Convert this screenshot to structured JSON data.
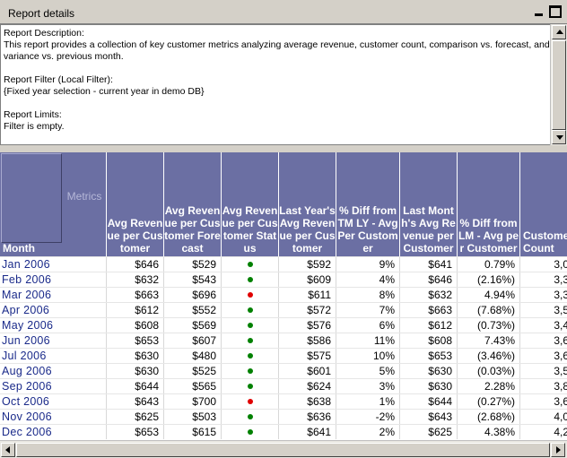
{
  "panel": {
    "title": "Report details",
    "description_label": "Report Description:",
    "description_text": "This report provides a collection of key customer metrics analyzing average revenue, customer count, comparison vs. forecast, and variance vs. previous month.",
    "filter_label": "Report Filter (Local Filter):",
    "filter_text": "{Fixed year selection - current year in demo DB}",
    "limits_label": "Report Limits:",
    "limits_text": "Filter is empty."
  },
  "grid": {
    "row_header": "Month",
    "metrics_label": "Metrics",
    "columns": [
      "Avg Revenue per Customer",
      "Avg Revenue per Customer Forecast",
      "Avg Revenue per Customer Status",
      "Last Year's Avg Revenue per Customer",
      "% Diff from TM LY - Avg Per Customer",
      "Last Month's Avg Revenue per Customer",
      "% Diff from LM - Avg per Customer",
      "Customer Count"
    ],
    "status_colors": {
      "green": "#008000",
      "red": "#e00000"
    },
    "rows": [
      {
        "month": "Jan 2006",
        "avg": "$646",
        "forecast": "$529",
        "status": "green",
        "ly": "$592",
        "diff_ly": "9%",
        "lm": "$641",
        "diff_lm": "0.79%",
        "count": "3,0"
      },
      {
        "month": "Feb 2006",
        "avg": "$632",
        "forecast": "$543",
        "status": "green",
        "ly": "$609",
        "diff_ly": "4%",
        "lm": "$646",
        "diff_lm": "(2.16%)",
        "count": "3,3"
      },
      {
        "month": "Mar 2006",
        "avg": "$663",
        "forecast": "$696",
        "status": "red",
        "ly": "$611",
        "diff_ly": "8%",
        "lm": "$632",
        "diff_lm": "4.94%",
        "count": "3,3"
      },
      {
        "month": "Apr 2006",
        "avg": "$612",
        "forecast": "$552",
        "status": "green",
        "ly": "$572",
        "diff_ly": "7%",
        "lm": "$663",
        "diff_lm": "(7.68%)",
        "count": "3,5"
      },
      {
        "month": "May 2006",
        "avg": "$608",
        "forecast": "$569",
        "status": "green",
        "ly": "$576",
        "diff_ly": "6%",
        "lm": "$612",
        "diff_lm": "(0.73%)",
        "count": "3,4"
      },
      {
        "month": "Jun 2006",
        "avg": "$653",
        "forecast": "$607",
        "status": "green",
        "ly": "$586",
        "diff_ly": "11%",
        "lm": "$608",
        "diff_lm": "7.43%",
        "count": "3,6"
      },
      {
        "month": "Jul 2006",
        "avg": "$630",
        "forecast": "$480",
        "status": "green",
        "ly": "$575",
        "diff_ly": "10%",
        "lm": "$653",
        "diff_lm": "(3.46%)",
        "count": "3,6"
      },
      {
        "month": "Aug 2006",
        "avg": "$630",
        "forecast": "$525",
        "status": "green",
        "ly": "$601",
        "diff_ly": "5%",
        "lm": "$630",
        "diff_lm": "(0.03%)",
        "count": "3,5"
      },
      {
        "month": "Sep 2006",
        "avg": "$644",
        "forecast": "$565",
        "status": "green",
        "ly": "$624",
        "diff_ly": "3%",
        "lm": "$630",
        "diff_lm": "2.28%",
        "count": "3,8"
      },
      {
        "month": "Oct 2006",
        "avg": "$643",
        "forecast": "$700",
        "status": "red",
        "ly": "$638",
        "diff_ly": "1%",
        "lm": "$644",
        "diff_lm": "(0.27%)",
        "count": "3,6"
      },
      {
        "month": "Nov 2006",
        "avg": "$625",
        "forecast": "$503",
        "status": "green",
        "ly": "$636",
        "diff_ly": "-2%",
        "lm": "$643",
        "diff_lm": "(2.68%)",
        "count": "4,0"
      },
      {
        "month": "Dec 2006",
        "avg": "$653",
        "forecast": "$615",
        "status": "green",
        "ly": "$641",
        "diff_ly": "2%",
        "lm": "$625",
        "diff_lm": "4.38%",
        "count": "4,2"
      }
    ]
  }
}
